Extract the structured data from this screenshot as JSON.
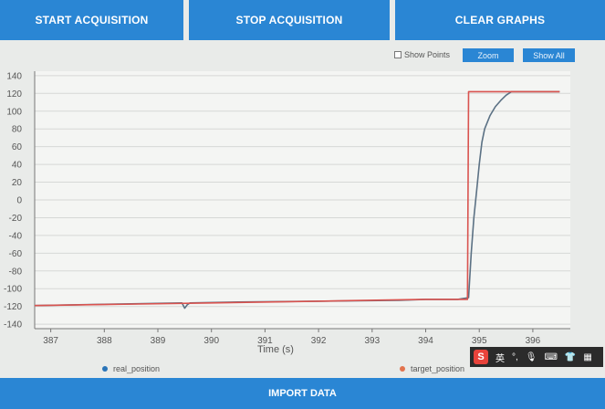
{
  "toolbar": {
    "start_label": "START ACQUISITION",
    "stop_label": "STOP ACQUISITION",
    "clear_label": "CLEAR GRAPHS"
  },
  "chart_controls": {
    "show_points_label": "Show Points",
    "show_points_checked": false,
    "zoom_label": "Zoom",
    "show_all_label": "Show All"
  },
  "chart_data": {
    "type": "line",
    "xlabel": "Time (s)",
    "ylabel": "",
    "xlim": [
      386.7,
      396.7
    ],
    "ylim": [
      -145,
      145
    ],
    "x_ticks": [
      "387",
      "388",
      "389",
      "390",
      "391",
      "392",
      "393",
      "394",
      "395",
      "396"
    ],
    "y_ticks": [
      "140",
      "120",
      "100",
      "80",
      "60",
      "40",
      "20",
      "0",
      "-20",
      "-40",
      "-60",
      "-80",
      "-100",
      "-120",
      "-140"
    ],
    "grid": true,
    "legend_position": "bottom",
    "series": [
      {
        "name": "real_position",
        "color": "#5b7184",
        "x": [
          386.7,
          388.5,
          389.45,
          389.5,
          389.55,
          389.6,
          390.5,
          392.0,
          393.5,
          394.0,
          394.6,
          394.8,
          394.85,
          394.9,
          394.95,
          395.0,
          395.05,
          395.1,
          395.2,
          395.3,
          395.4,
          395.5,
          395.6,
          396.0,
          396.5
        ],
        "y": [
          -119,
          -117,
          -116,
          -122,
          -118,
          -116,
          -115,
          -114,
          -113,
          -112,
          -112,
          -110,
          -60,
          -20,
          10,
          40,
          65,
          80,
          95,
          105,
          112,
          118,
          122,
          122,
          122
        ]
      },
      {
        "name": "target_position",
        "color": "#d9534f",
        "x": [
          386.7,
          390.0,
          392.0,
          394.0,
          394.78,
          394.8,
          396.5
        ],
        "y": [
          -119,
          -116,
          -114,
          -112,
          -112,
          122,
          122
        ]
      }
    ]
  },
  "legend": {
    "real_label": "real_position",
    "real_color": "#2a74b8",
    "target_label": "target_position",
    "target_color": "#e2734e"
  },
  "ime_bar": {
    "logo": "S",
    "lang": "英"
  },
  "bottom": {
    "import_label": "IMPORT DATA"
  }
}
